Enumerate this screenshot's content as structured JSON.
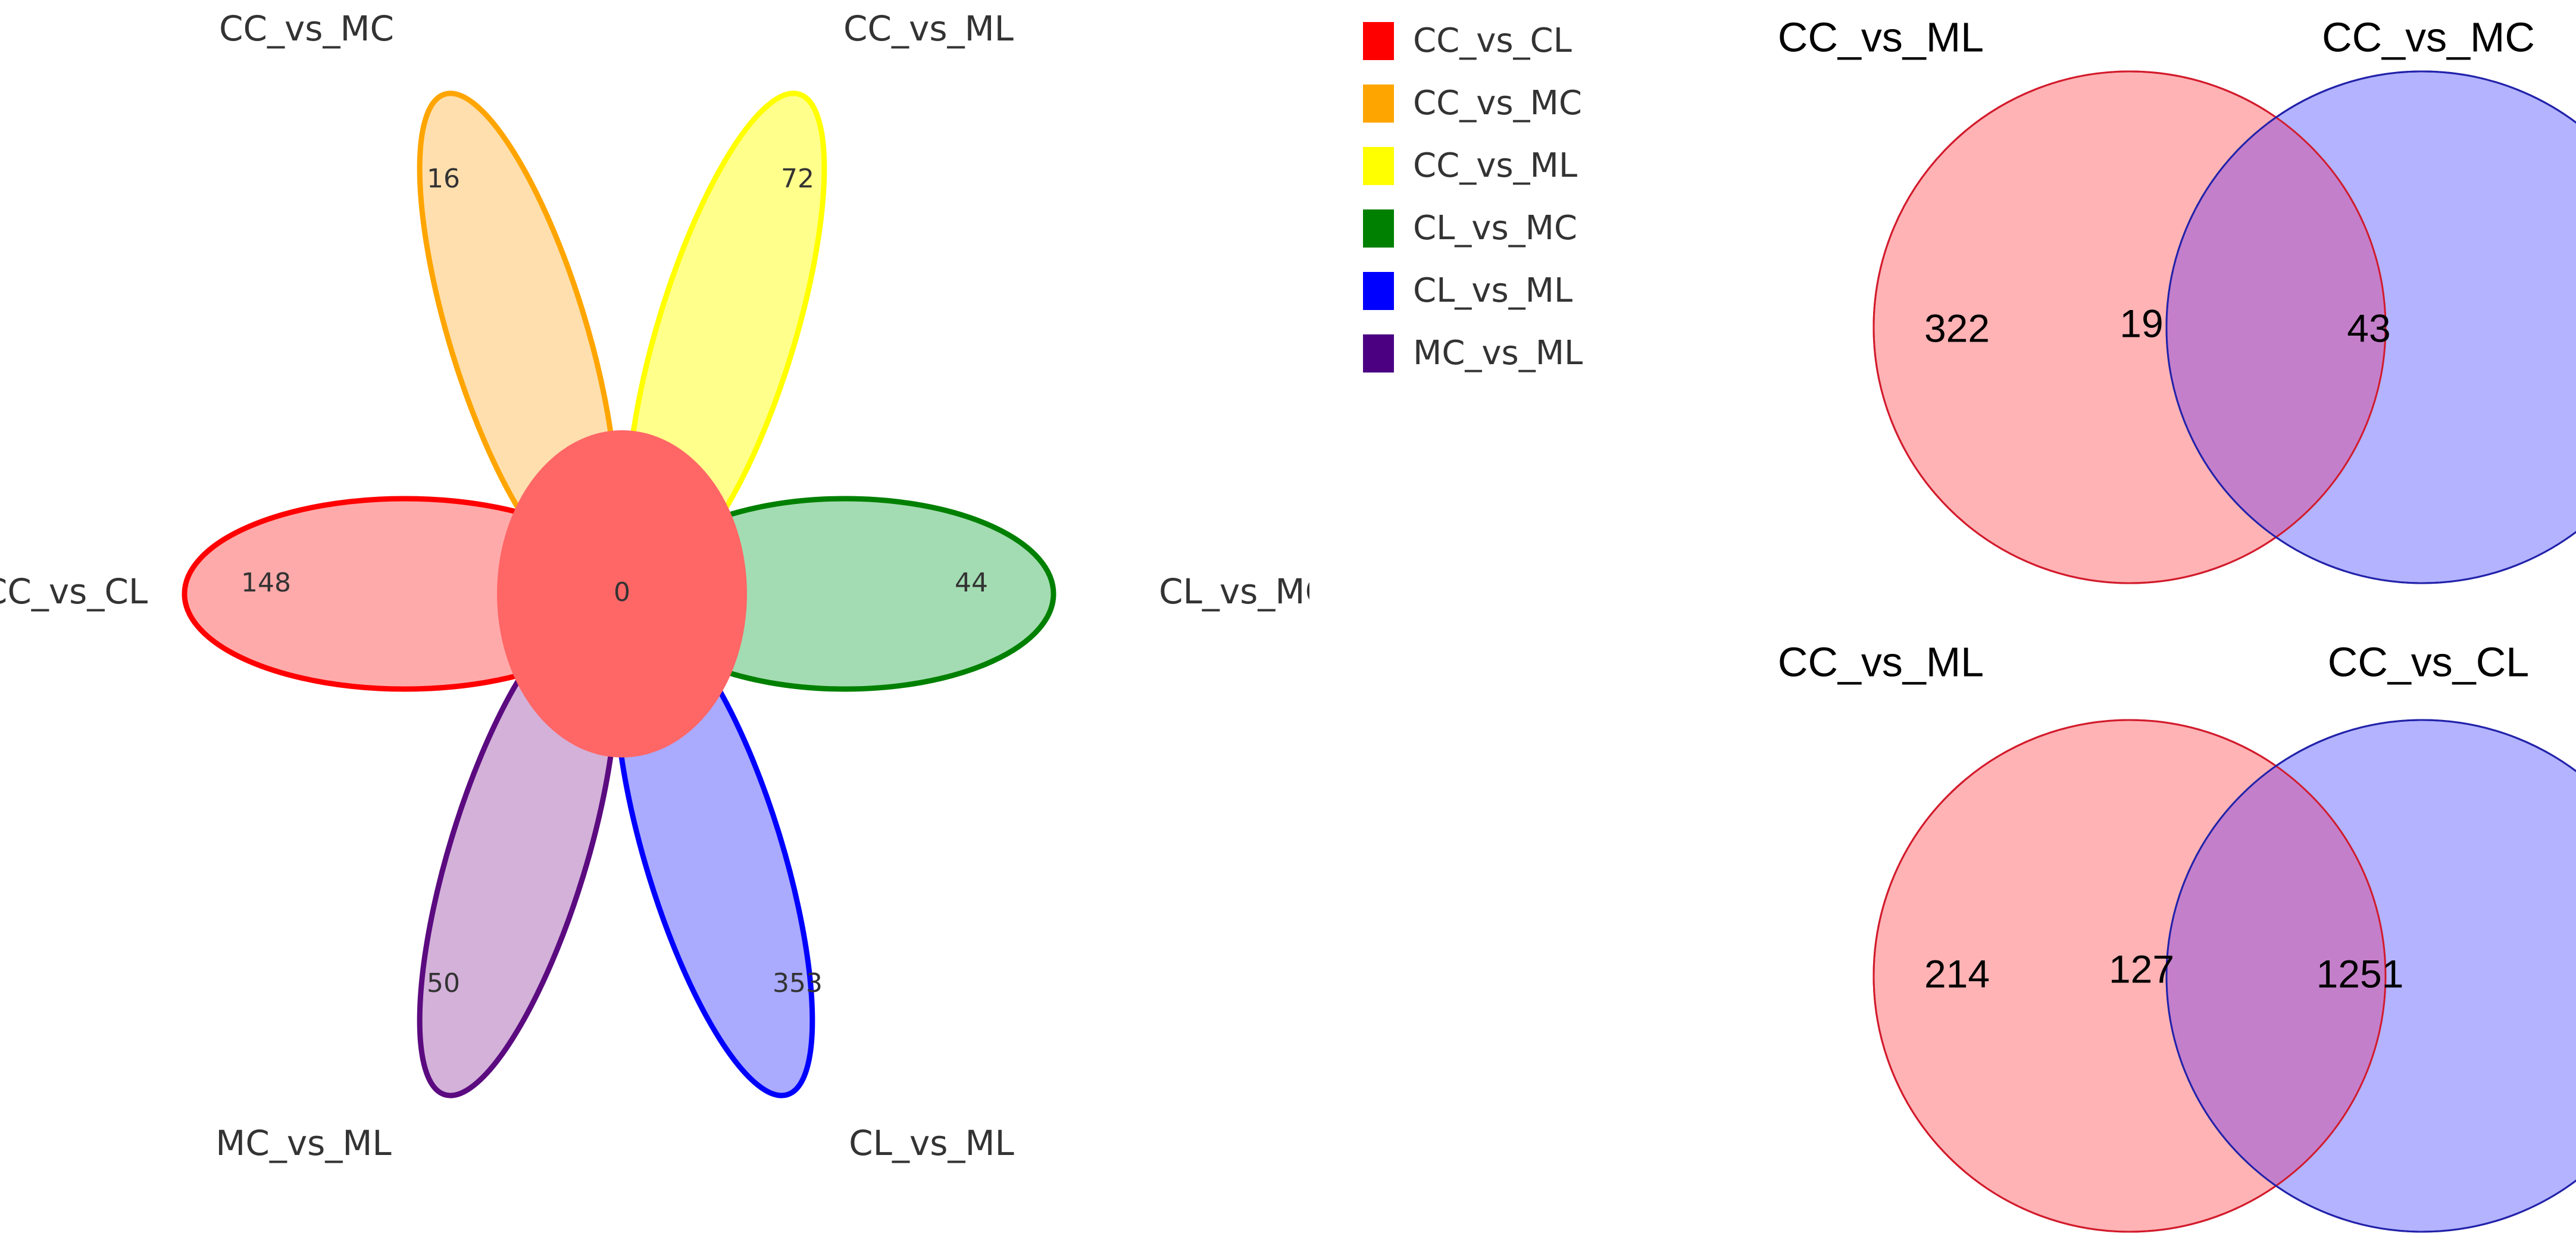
{
  "flower": {
    "core": {
      "label": "0",
      "color": "#ff6666"
    },
    "petals": [
      {
        "set": "CC_vs_CL",
        "count": "148",
        "fill": "#ffaaaa",
        "stroke": "#ff0000"
      },
      {
        "set": "CC_vs_MC",
        "count": "16",
        "fill": "#ffdfae",
        "stroke": "#ffa500"
      },
      {
        "set": "CC_vs_ML",
        "count": "72",
        "fill": "#ffff8c",
        "stroke": "#ffff00"
      },
      {
        "set": "CL_vs_MC",
        "count": "44",
        "fill": "#a3dcb2",
        "stroke": "#008000"
      },
      {
        "set": "CL_vs_ML",
        "count": "353",
        "fill": "#aaaaff",
        "stroke": "#0000ff"
      },
      {
        "set": "MC_vs_ML",
        "count": "50",
        "fill": "#d3b1d9",
        "stroke": "#5b0a80"
      }
    ]
  },
  "legend": {
    "items": [
      {
        "label": "CC_vs_CL",
        "color": "#ff0000"
      },
      {
        "label": "CC_vs_MC",
        "color": "#ffa500"
      },
      {
        "label": "CC_vs_ML",
        "color": "#ffff00"
      },
      {
        "label": "CL_vs_MC",
        "color": "#008000"
      },
      {
        "label": "CL_vs_ML",
        "color": "#0000ff"
      },
      {
        "label": "MC_vs_ML",
        "color": "#4b0082"
      }
    ]
  },
  "venn_top": {
    "left_set": "CC_vs_ML",
    "right_set": "CC_vs_MC",
    "left_only": "322",
    "overlap": "19",
    "right_only": "43",
    "left_fill": "#ffb3b5",
    "left_stroke": "#d21b2c",
    "right_fill": "#b3b3ff",
    "right_stroke": "#2222aa",
    "overlap_fill": "#c47fcb"
  },
  "venn_bottom": {
    "left_set": "CC_vs_ML",
    "right_set": "CC_vs_CL",
    "left_only": "214",
    "overlap": "127",
    "right_only": "1251",
    "left_fill": "#ffb3b5",
    "left_stroke": "#d21b2c",
    "right_fill": "#b3b3ff",
    "right_stroke": "#2222aa",
    "overlap_fill": "#c47fcb"
  }
}
